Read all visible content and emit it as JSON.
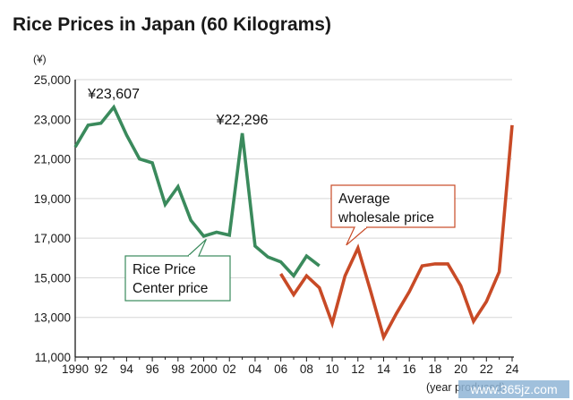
{
  "chart_data": {
    "type": "line",
    "title": "Rice Prices in Japan (60 Kilograms)",
    "yunit": "(¥)",
    "xunit": "(year produced)",
    "ylim": [
      11000,
      25000
    ],
    "yticks": [
      11000,
      13000,
      15000,
      17000,
      19000,
      21000,
      23000,
      25000
    ],
    "ytick_labels": [
      "11,000",
      "13,000",
      "15,000",
      "17,000",
      "19,000",
      "21,000",
      "23,000",
      "25,000"
    ],
    "xlim": [
      1990,
      2024
    ],
    "xticks": [
      1990,
      1992,
      1994,
      1996,
      1998,
      2000,
      2002,
      2004,
      2006,
      2008,
      2010,
      2012,
      2014,
      2016,
      2018,
      2020,
      2022,
      2024
    ],
    "xtick_labels": [
      "1990",
      "92",
      "94",
      "96",
      "98",
      "2000",
      "02",
      "04",
      "06",
      "08",
      "10",
      "12",
      "14",
      "16",
      "18",
      "20",
      "22",
      "24"
    ],
    "grid": true,
    "series": [
      {
        "name": "Rice Price Center price",
        "color": "#3a8a5c",
        "x": [
          1990,
          1991,
          1992,
          1993,
          1994,
          1995,
          1996,
          1997,
          1998,
          1999,
          2000,
          2001,
          2002,
          2003,
          2004,
          2005,
          2006,
          2007,
          2008,
          2009
        ],
        "y": [
          21600,
          22700,
          22800,
          23607,
          22200,
          21000,
          20800,
          18700,
          19600,
          17900,
          17100,
          17300,
          17150,
          22296,
          16600,
          16050,
          15800,
          15100,
          16100,
          15600
        ]
      },
      {
        "name": "Average wholesale price",
        "color": "#c84a26",
        "x": [
          2006,
          2007,
          2008,
          2009,
          2010,
          2011,
          2012,
          2013,
          2014,
          2015,
          2016,
          2017,
          2018,
          2019,
          2020,
          2021,
          2022,
          2023,
          2024
        ],
        "y": [
          15200,
          14150,
          15100,
          14500,
          12700,
          15100,
          16500,
          14300,
          12000,
          13200,
          14300,
          15600,
          15700,
          15700,
          14600,
          12800,
          13800,
          15300,
          22700
        ]
      }
    ],
    "annotations": [
      {
        "text": "¥23,607",
        "x": 1993,
        "y": 23607
      },
      {
        "text": "¥22,296",
        "x": 2003,
        "y": 22296
      }
    ],
    "callouts": [
      {
        "series": 0,
        "lines": [
          "Rice Price",
          "Center price"
        ],
        "border": "#3a8a5c"
      },
      {
        "series": 1,
        "lines": [
          "Average",
          "wholesale price"
        ],
        "border": "#c84a26"
      }
    ]
  },
  "watermark": "www.365jz.com"
}
